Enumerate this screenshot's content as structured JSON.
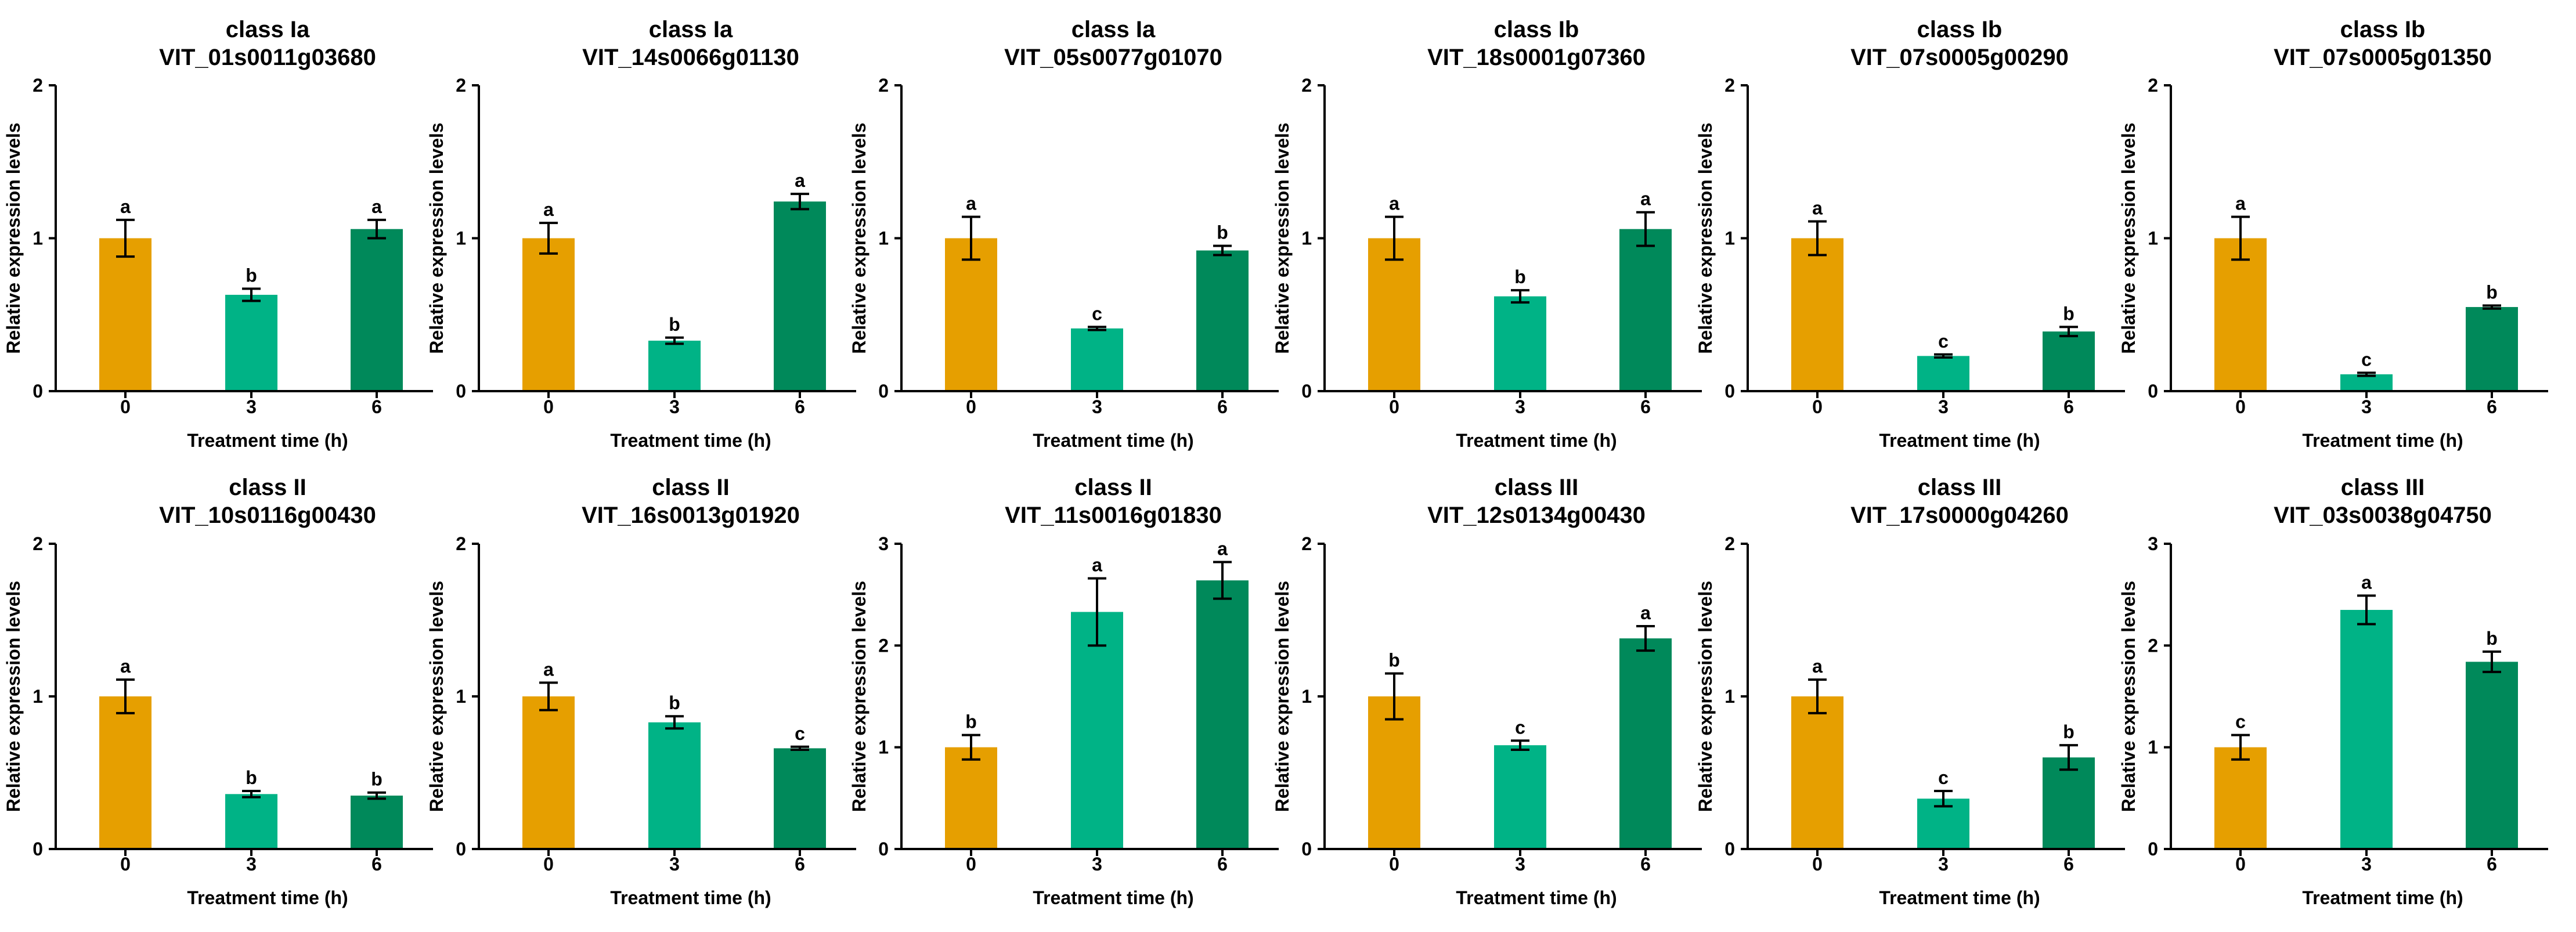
{
  "colors": {
    "t0": "#E69F00",
    "t3": "#00B386",
    "t6": "#00895A"
  },
  "chart_data": [
    {
      "type": "bar",
      "class_label": "class Ia",
      "gene": "VIT_01s0011g03680",
      "categories": [
        "0",
        "3",
        "6"
      ],
      "values": [
        1.0,
        0.63,
        1.06
      ],
      "errors": [
        0.12,
        0.04,
        0.06
      ],
      "letters": [
        "a",
        "b",
        "a"
      ],
      "xlabel": "Treatment time (h)",
      "ylabel": "Relative expression levels",
      "ylim": [
        0,
        2
      ],
      "yticks": [
        "0",
        "1",
        "2"
      ]
    },
    {
      "type": "bar",
      "class_label": "class Ia",
      "gene": "VIT_14s0066g01130",
      "categories": [
        "0",
        "3",
        "6"
      ],
      "values": [
        1.0,
        0.33,
        1.24
      ],
      "errors": [
        0.1,
        0.02,
        0.05
      ],
      "letters": [
        "a",
        "b",
        "a"
      ],
      "xlabel": "Treatment time (h)",
      "ylabel": "Relative expression levels",
      "ylim": [
        0,
        2
      ],
      "yticks": [
        "0",
        "1",
        "2"
      ]
    },
    {
      "type": "bar",
      "class_label": "class Ia",
      "gene": "VIT_05s0077g01070",
      "categories": [
        "0",
        "3",
        "6"
      ],
      "values": [
        1.0,
        0.41,
        0.92
      ],
      "errors": [
        0.14,
        0.01,
        0.03
      ],
      "letters": [
        "a",
        "c",
        "b"
      ],
      "xlabel": "Treatment time (h)",
      "ylabel": "Relative expression levels",
      "ylim": [
        0,
        2
      ],
      "yticks": [
        "0",
        "1",
        "2"
      ]
    },
    {
      "type": "bar",
      "class_label": "class Ib",
      "gene": "VIT_18s0001g07360",
      "categories": [
        "0",
        "3",
        "6"
      ],
      "values": [
        1.0,
        0.62,
        1.06
      ],
      "errors": [
        0.14,
        0.04,
        0.11
      ],
      "letters": [
        "a",
        "b",
        "a"
      ],
      "xlabel": "Treatment time (h)",
      "ylabel": "Relative expression levels",
      "ylim": [
        0,
        2
      ],
      "yticks": [
        "0",
        "1",
        "2"
      ]
    },
    {
      "type": "bar",
      "class_label": "class Ib",
      "gene": "VIT_07s0005g00290",
      "categories": [
        "0",
        "3",
        "6"
      ],
      "values": [
        1.0,
        0.23,
        0.39
      ],
      "errors": [
        0.11,
        0.01,
        0.03
      ],
      "letters": [
        "a",
        "c",
        "b"
      ],
      "xlabel": "Treatment time (h)",
      "ylabel": "Relative expression levels",
      "ylim": [
        0,
        2
      ],
      "yticks": [
        "0",
        "1",
        "2"
      ]
    },
    {
      "type": "bar",
      "class_label": "class Ib",
      "gene": "VIT_07s0005g01350",
      "categories": [
        "0",
        "3",
        "6"
      ],
      "values": [
        1.0,
        0.11,
        0.55
      ],
      "errors": [
        0.14,
        0.01,
        0.01
      ],
      "letters": [
        "a",
        "c",
        "b"
      ],
      "xlabel": "Treatment time (h)",
      "ylabel": "Relative expression levels",
      "ylim": [
        0,
        2
      ],
      "yticks": [
        "0",
        "1",
        "2"
      ]
    },
    {
      "type": "bar",
      "class_label": "class II",
      "gene": "VIT_10s0116g00430",
      "categories": [
        "0",
        "3",
        "6"
      ],
      "values": [
        1.0,
        0.36,
        0.35
      ],
      "errors": [
        0.11,
        0.02,
        0.02
      ],
      "letters": [
        "a",
        "b",
        "b"
      ],
      "xlabel": "Treatment time (h)",
      "ylabel": "Relative expression levels",
      "ylim": [
        0,
        2
      ],
      "yticks": [
        "0",
        "1",
        "2"
      ]
    },
    {
      "type": "bar",
      "class_label": "class II",
      "gene": "VIT_16s0013g01920",
      "categories": [
        "0",
        "3",
        "6"
      ],
      "values": [
        1.0,
        0.83,
        0.66
      ],
      "errors": [
        0.09,
        0.04,
        0.01
      ],
      "letters": [
        "a",
        "b",
        "c"
      ],
      "xlabel": "Treatment time (h)",
      "ylabel": "Relative expression levels",
      "ylim": [
        0,
        2
      ],
      "yticks": [
        "0",
        "1",
        "2"
      ]
    },
    {
      "type": "bar",
      "class_label": "class II",
      "gene": "VIT_11s0016g01830",
      "categories": [
        "0",
        "3",
        "6"
      ],
      "values": [
        1.0,
        2.33,
        2.64
      ],
      "errors": [
        0.12,
        0.33,
        0.18
      ],
      "letters": [
        "b",
        "a",
        "a"
      ],
      "xlabel": "Treatment time (h)",
      "ylabel": "Relative expression levels",
      "ylim": [
        0,
        3
      ],
      "yticks": [
        "0",
        "1",
        "2",
        "3"
      ]
    },
    {
      "type": "bar",
      "class_label": "class III",
      "gene": "VIT_12s0134g00430",
      "categories": [
        "0",
        "3",
        "6"
      ],
      "values": [
        1.0,
        0.68,
        1.38
      ],
      "errors": [
        0.15,
        0.03,
        0.08
      ],
      "letters": [
        "b",
        "c",
        "a"
      ],
      "xlabel": "Treatment time (h)",
      "ylabel": "Relative expression levels",
      "ylim": [
        0,
        2
      ],
      "yticks": [
        "0",
        "1",
        "2"
      ]
    },
    {
      "type": "bar",
      "class_label": "class III",
      "gene": "VIT_17s0000g04260",
      "categories": [
        "0",
        "3",
        "6"
      ],
      "values": [
        1.0,
        0.33,
        0.6
      ],
      "errors": [
        0.11,
        0.05,
        0.08
      ],
      "letters": [
        "a",
        "c",
        "b"
      ],
      "xlabel": "Treatment time (h)",
      "ylabel": "Relative expression levels",
      "ylim": [
        0,
        2
      ],
      "yticks": [
        "0",
        "1",
        "2"
      ]
    },
    {
      "type": "bar",
      "class_label": "class III",
      "gene": "VIT_03s0038g04750",
      "categories": [
        "0",
        "3",
        "6"
      ],
      "values": [
        1.0,
        2.35,
        1.84
      ],
      "errors": [
        0.12,
        0.14,
        0.1
      ],
      "letters": [
        "c",
        "a",
        "b"
      ],
      "xlabel": "Treatment time (h)",
      "ylabel": "Relative expression levels",
      "ylim": [
        0,
        3
      ],
      "yticks": [
        "0",
        "1",
        "2",
        "3"
      ]
    }
  ]
}
